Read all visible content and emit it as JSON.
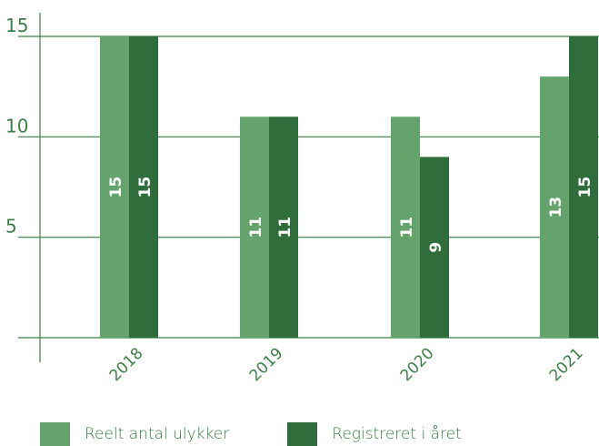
{
  "chart_data": {
    "type": "bar",
    "categories": [
      "2018",
      "2019",
      "2020",
      "2021"
    ],
    "series": [
      {
        "name": "Reelt antal ulykker",
        "values": [
          15,
          11,
          11,
          13
        ],
        "color": "#64a46c"
      },
      {
        "name": "Registreret i året",
        "values": [
          15,
          11,
          9,
          15
        ],
        "color": "#2f6e3a"
      }
    ],
    "yticks": [
      5,
      10,
      15
    ],
    "ylim": [
      0,
      15
    ],
    "grid": true,
    "legend_position": "bottom-left",
    "axis_color": "#3d7f47"
  }
}
